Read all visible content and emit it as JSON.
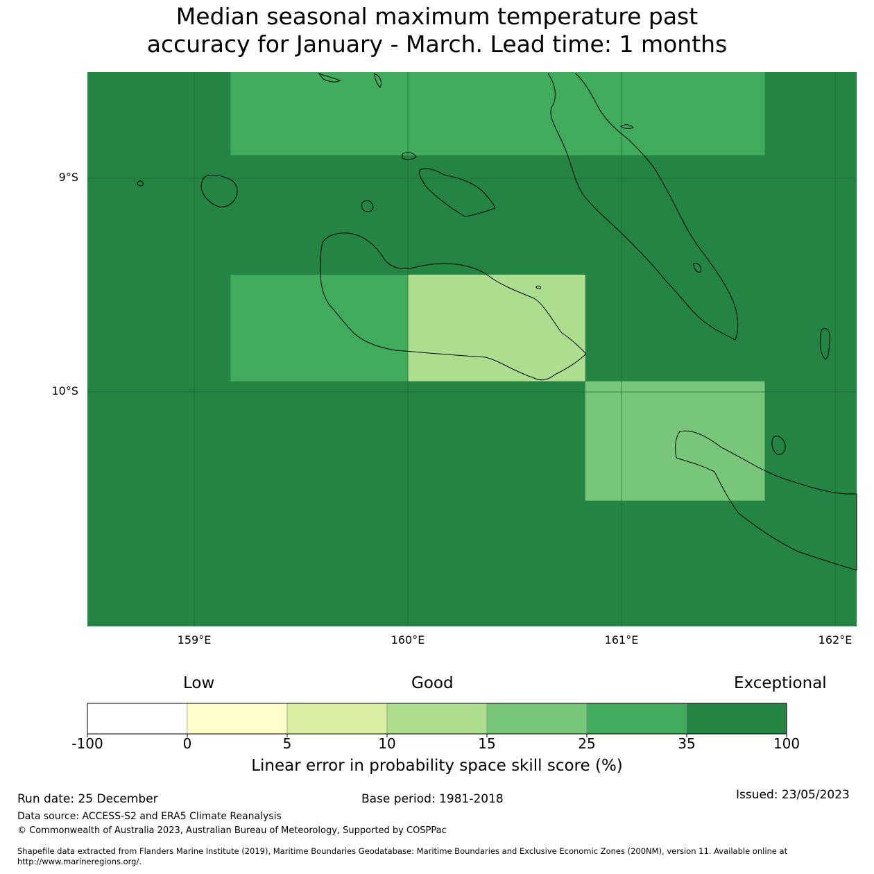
{
  "title": {
    "line1": "Median seasonal maximum temperature past",
    "line2": "accuracy for January - March. Lead time: 1 months"
  },
  "axes": {
    "lat_labels": [
      "9°S",
      "10°S"
    ],
    "lon_labels": [
      "159°E",
      "160°E",
      "161°E",
      "162°E"
    ]
  },
  "colorbar": {
    "categories": [
      "Low",
      "Good",
      "Exceptional"
    ],
    "ticks": [
      "-100",
      "0",
      "5",
      "10",
      "15",
      "25",
      "35",
      "100"
    ],
    "colors": [
      "#ffffff",
      "#ffffcc",
      "#d9f0a3",
      "#addd8e",
      "#78c679",
      "#41ab5d",
      "#238443"
    ],
    "label": "Linear error in probability space skill score (%)"
  },
  "map": {
    "lon_range": [
      158.5,
      162.1
    ],
    "lat_range": [
      -8.55,
      -11.15
    ],
    "ocean_color": "#238443",
    "cells": [
      {
        "lon": [
          159.17,
          161.67
        ],
        "lat": [
          -8.55,
          -8.94
        ],
        "color": "#41ab5d"
      },
      {
        "lon": [
          159.17,
          160.0
        ],
        "lat": [
          -9.5,
          -10.0
        ],
        "color": "#41ab5d"
      },
      {
        "lon": [
          160.0,
          160.83
        ],
        "lat": [
          -9.5,
          -10.0
        ],
        "color": "#addd8e"
      },
      {
        "lon": [
          160.83,
          161.67
        ],
        "lat": [
          -10.0,
          -10.56
        ],
        "color": "#78c679"
      }
    ]
  },
  "footer": {
    "run_date": "Run date: 25 December",
    "base_period": "Base period: 1981-2018",
    "issued": "Issued: 23/05/2023",
    "data_source": "Data source: ACCESS-S2 and ERA5 Climate Reanalysis",
    "copyright": "© Commonwealth of Australia 2023, Australian Bureau of Meteorology, Supported by COSPPac",
    "shapefile_line1": "Shapefile data extracted from Flanders Marine Institute (2019), Maritime Boundaries Geodatabase: Maritime Boundaries and Exclusive Economic Zones (200NM), version 11. Available online at",
    "shapefile_line2": "http://www.marineregions.org/."
  }
}
